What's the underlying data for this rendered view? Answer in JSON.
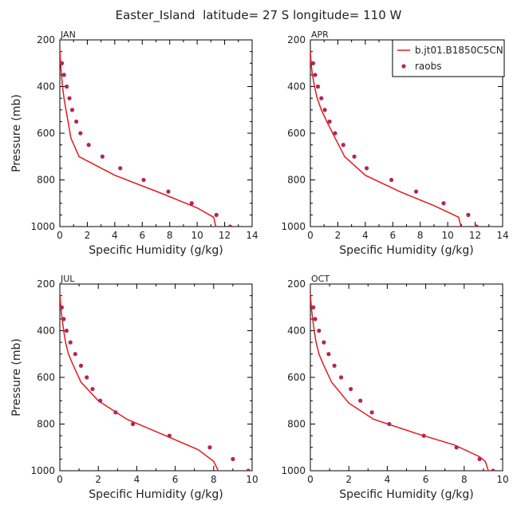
{
  "figure": {
    "title": "Easter_Island  latitude= 27 S longitude= 110 W",
    "colors": {
      "model_line": "#e41a1c",
      "obs_points": "#b5245c",
      "axes": "#000000"
    }
  },
  "legend": {
    "entries": [
      {
        "label": "b.jt01.B1850C5CN",
        "style": "line",
        "color": "#e41a1c"
      },
      {
        "label": "raobs",
        "style": "point",
        "color": "#b5245c"
      }
    ]
  },
  "chart_data": [
    {
      "type": "line",
      "panel_label": "JAN",
      "xlabel": "Specific Humidity (g/kg)",
      "ylabel": "Pressure (mb)",
      "xlim": [
        0,
        14
      ],
      "ylim": [
        1000,
        200
      ],
      "xticks": [
        0,
        2,
        4,
        6,
        8,
        10,
        12,
        14
      ],
      "yticks": [
        200,
        400,
        600,
        800,
        1000
      ],
      "series": [
        {
          "name": "b.jt01.B1850C5CN",
          "style": "line",
          "color": "#e41a1c",
          "x": [
            0.0,
            0.05,
            0.12,
            0.2,
            0.3,
            0.45,
            0.6,
            0.8,
            1.4,
            4.0,
            7.5,
            10.0,
            11.2,
            11.4
          ],
          "y": [
            240,
            300,
            350,
            400,
            450,
            500,
            550,
            620,
            700,
            780,
            860,
            920,
            960,
            1010
          ]
        },
        {
          "name": "raobs",
          "style": "points",
          "color": "#b5245c",
          "x": [
            0.15,
            0.3,
            0.5,
            0.7,
            0.9,
            1.2,
            1.5,
            2.1,
            3.1,
            4.4,
            6.1,
            7.9,
            9.6,
            11.4,
            12.4
          ],
          "y": [
            300,
            350,
            400,
            450,
            500,
            550,
            600,
            650,
            700,
            750,
            800,
            850,
            900,
            950,
            1000
          ]
        }
      ]
    },
    {
      "type": "line",
      "panel_label": "APR",
      "xlabel": "Specific Humidity (g/kg)",
      "ylabel": "",
      "xlim": [
        0,
        14
      ],
      "ylim": [
        1000,
        200
      ],
      "xticks": [
        0,
        2,
        4,
        6,
        8,
        10,
        12,
        14
      ],
      "yticks": [
        200,
        400,
        600,
        800,
        1000
      ],
      "series": [
        {
          "name": "b.jt01.B1850C5CN",
          "style": "line",
          "color": "#e41a1c",
          "x": [
            0.0,
            0.05,
            0.15,
            0.3,
            0.5,
            0.8,
            1.2,
            1.8,
            2.5,
            4.0,
            6.5,
            9.0,
            10.8,
            11.0
          ],
          "y": [
            240,
            300,
            350,
            400,
            450,
            500,
            550,
            620,
            700,
            780,
            850,
            910,
            960,
            1010
          ]
        },
        {
          "name": "raobs",
          "style": "points",
          "color": "#b5245c",
          "x": [
            0.2,
            0.35,
            0.55,
            0.8,
            1.05,
            1.4,
            1.8,
            2.4,
            3.2,
            4.1,
            5.9,
            7.7,
            9.7,
            11.5,
            12.1
          ],
          "y": [
            300,
            350,
            400,
            450,
            500,
            550,
            600,
            650,
            700,
            750,
            800,
            850,
            900,
            950,
            1000
          ]
        }
      ]
    },
    {
      "type": "line",
      "panel_label": "JUL",
      "xlabel": "Specific Humidity (g/kg)",
      "ylabel": "Pressure (mb)",
      "xlim": [
        0,
        10
      ],
      "ylim": [
        1000,
        200
      ],
      "xticks": [
        0,
        2,
        4,
        6,
        8,
        10
      ],
      "yticks": [
        200,
        400,
        600,
        800,
        1000
      ],
      "series": [
        {
          "name": "b.jt01.B1850C5CN",
          "style": "line",
          "color": "#e41a1c",
          "x": [
            0.0,
            0.05,
            0.12,
            0.2,
            0.3,
            0.45,
            0.65,
            1.1,
            2.0,
            3.5,
            5.5,
            7.2,
            8.0,
            8.3
          ],
          "y": [
            240,
            300,
            350,
            400,
            450,
            500,
            540,
            620,
            700,
            780,
            850,
            910,
            960,
            1010
          ]
        },
        {
          "name": "raobs",
          "style": "points",
          "color": "#b5245c",
          "x": [
            0.1,
            0.2,
            0.35,
            0.55,
            0.8,
            1.1,
            1.4,
            1.7,
            2.1,
            2.9,
            3.8,
            5.7,
            7.8,
            9.0,
            9.8
          ],
          "y": [
            300,
            350,
            400,
            450,
            500,
            550,
            600,
            650,
            700,
            750,
            800,
            850,
            900,
            950,
            1000
          ]
        }
      ]
    },
    {
      "type": "line",
      "panel_label": "OCT",
      "xlabel": "Specific Humidity (g/kg)",
      "ylabel": "",
      "xlim": [
        0,
        10
      ],
      "ylim": [
        1000,
        200
      ],
      "xticks": [
        0,
        2,
        4,
        6,
        8,
        10
      ],
      "yticks": [
        200,
        400,
        600,
        800,
        1000
      ],
      "series": [
        {
          "name": "b.jt01.B1850C5CN",
          "style": "line",
          "color": "#e41a1c",
          "x": [
            0.0,
            0.05,
            0.12,
            0.2,
            0.3,
            0.45,
            0.65,
            1.1,
            2.0,
            3.3,
            5.5,
            7.5,
            8.8,
            9.1,
            9.3
          ],
          "y": [
            240,
            300,
            350,
            400,
            450,
            500,
            540,
            620,
            710,
            780,
            840,
            890,
            940,
            960,
            1010
          ]
        },
        {
          "name": "raobs",
          "style": "points",
          "color": "#b5245c",
          "x": [
            0.15,
            0.25,
            0.45,
            0.7,
            0.95,
            1.25,
            1.6,
            2.1,
            2.6,
            3.2,
            4.1,
            5.9,
            7.6,
            8.8,
            9.5
          ],
          "y": [
            300,
            350,
            400,
            450,
            500,
            550,
            600,
            650,
            700,
            750,
            800,
            850,
            900,
            950,
            1000
          ]
        }
      ]
    }
  ]
}
